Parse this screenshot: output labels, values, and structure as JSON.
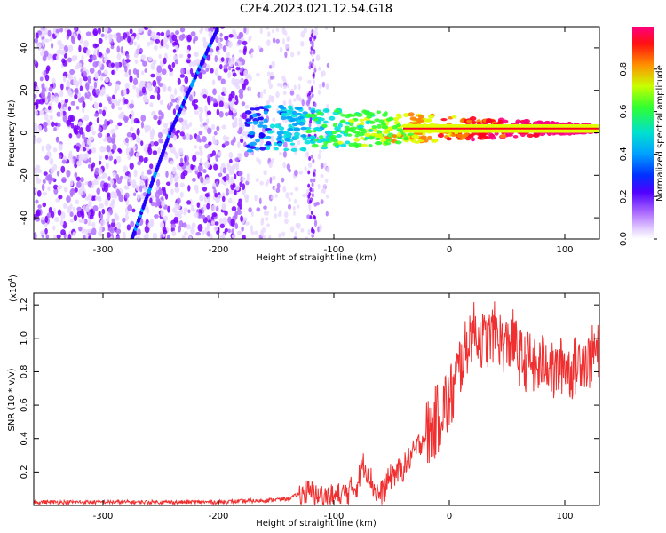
{
  "figure": {
    "title": "C2E4.2023.021.12.54.G18"
  },
  "chart_data": [
    {
      "type": "heatmap",
      "xlabel": "Height of straight line (km)",
      "ylabel": "Frequency (Hz)",
      "xlim": [
        -360,
        130
      ],
      "ylim": [
        -50,
        50
      ],
      "xticks": [
        -300,
        -200,
        -100,
        0,
        100
      ],
      "yticks": [
        -40,
        -20,
        0,
        20,
        40
      ],
      "colorbar": {
        "label": "Normalized spectral amplitude",
        "ticks": [
          "0.0",
          "0.2",
          "0.4",
          "0.6",
          "0.8"
        ],
        "range": [
          0,
          1
        ],
        "colormap": [
          "#e8d8ff",
          "#b070ff",
          "#7a00ff",
          "#2000ff",
          "#00a0ff",
          "#00e0e0",
          "#30ff30",
          "#e0ff00",
          "#ff8000",
          "#ff0020",
          "#ff0080"
        ]
      },
      "features": {
        "noise_region_km": [
          -360,
          -175
        ],
        "sparse_region_km": [
          -175,
          -105
        ],
        "signal_band_center_hz": 2,
        "signal_band_start_km": -175,
        "diagonal_trace": [
          [
            -275,
            -50
          ],
          [
            -242,
            0
          ],
          [
            -200,
            50
          ]
        ]
      }
    },
    {
      "type": "line",
      "xlabel": "Height of straight line (km)",
      "ylabel": "SNR (10 * v/v)",
      "yscale_label_base": "(x10",
      "yscale_label_exp": "4",
      "yscale_label_close": ")",
      "xlim": [
        -360,
        130
      ],
      "ylim": [
        0,
        1.27
      ],
      "xticks": [
        -300,
        -200,
        -100,
        0,
        100
      ],
      "yticks": [
        "0.2",
        "0.4",
        "0.6",
        "0.8",
        "1.0",
        "1.2"
      ],
      "line_color": "#f03030",
      "series": [
        {
          "x": [
            -360,
            -300,
            -200,
            -160,
            -140,
            -125,
            -110,
            -100,
            -90,
            -80,
            -75,
            -70,
            -65,
            -60,
            -55,
            -50,
            -45,
            -40,
            -35,
            -30,
            -25,
            -20,
            -15,
            -10,
            -5,
            0,
            5,
            10,
            15,
            20,
            25,
            30,
            35,
            40,
            45,
            50,
            55,
            60,
            65,
            70,
            75,
            80,
            85,
            90,
            95,
            100,
            105,
            110,
            115,
            120,
            125,
            130
          ],
          "values": [
            0.02,
            0.02,
            0.02,
            0.03,
            0.04,
            0.08,
            0.06,
            0.05,
            0.07,
            0.12,
            0.25,
            0.2,
            0.1,
            0.06,
            0.12,
            0.18,
            0.2,
            0.22,
            0.28,
            0.32,
            0.38,
            0.42,
            0.46,
            0.52,
            0.6,
            0.62,
            0.72,
            0.85,
            0.95,
            1.05,
            1.02,
            0.98,
            1.0,
            1.05,
            0.98,
            0.95,
            1.0,
            0.9,
            0.85,
            0.88,
            0.8,
            0.85,
            0.88,
            0.78,
            0.82,
            0.86,
            0.8,
            0.84,
            0.9,
            0.85,
            0.92,
            0.9
          ]
        }
      ]
    }
  ]
}
